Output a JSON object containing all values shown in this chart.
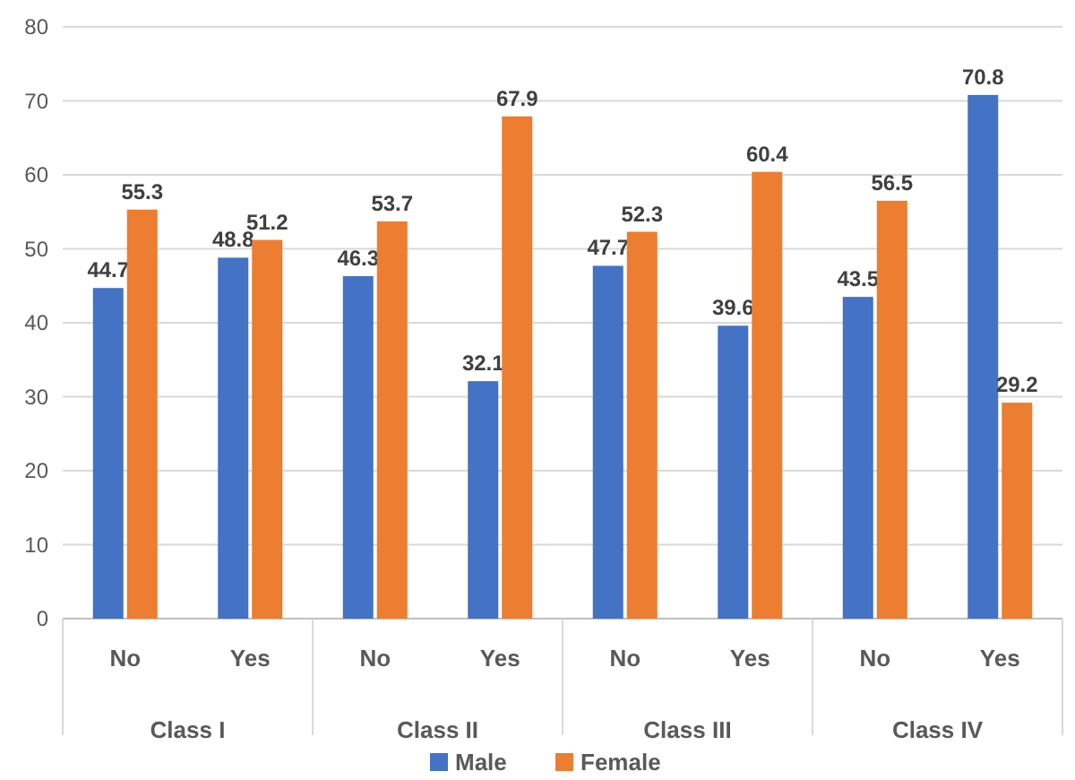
{
  "chart_data": {
    "type": "bar",
    "categories": [
      "No",
      "Yes",
      "No",
      "Yes",
      "No",
      "Yes",
      "No",
      "Yes"
    ],
    "annotations": [
      "Class I",
      "Class II",
      "Class III",
      "Class IV"
    ],
    "series": [
      {
        "name": "Male",
        "color": "#4472c4",
        "values": [
          44.7,
          48.8,
          46.3,
          32.1,
          47.7,
          39.6,
          43.5,
          70.8
        ]
      },
      {
        "name": "Female",
        "color": "#ed7d31",
        "values": [
          55.3,
          51.2,
          53.7,
          67.9,
          52.3,
          60.4,
          56.5,
          29.2
        ]
      }
    ],
    "ylim": [
      0,
      80
    ],
    "yticks": [
      0,
      10,
      20,
      30,
      40,
      50,
      60,
      70,
      80
    ],
    "grid": "y",
    "legend": "bottom",
    "data_labels": true
  }
}
